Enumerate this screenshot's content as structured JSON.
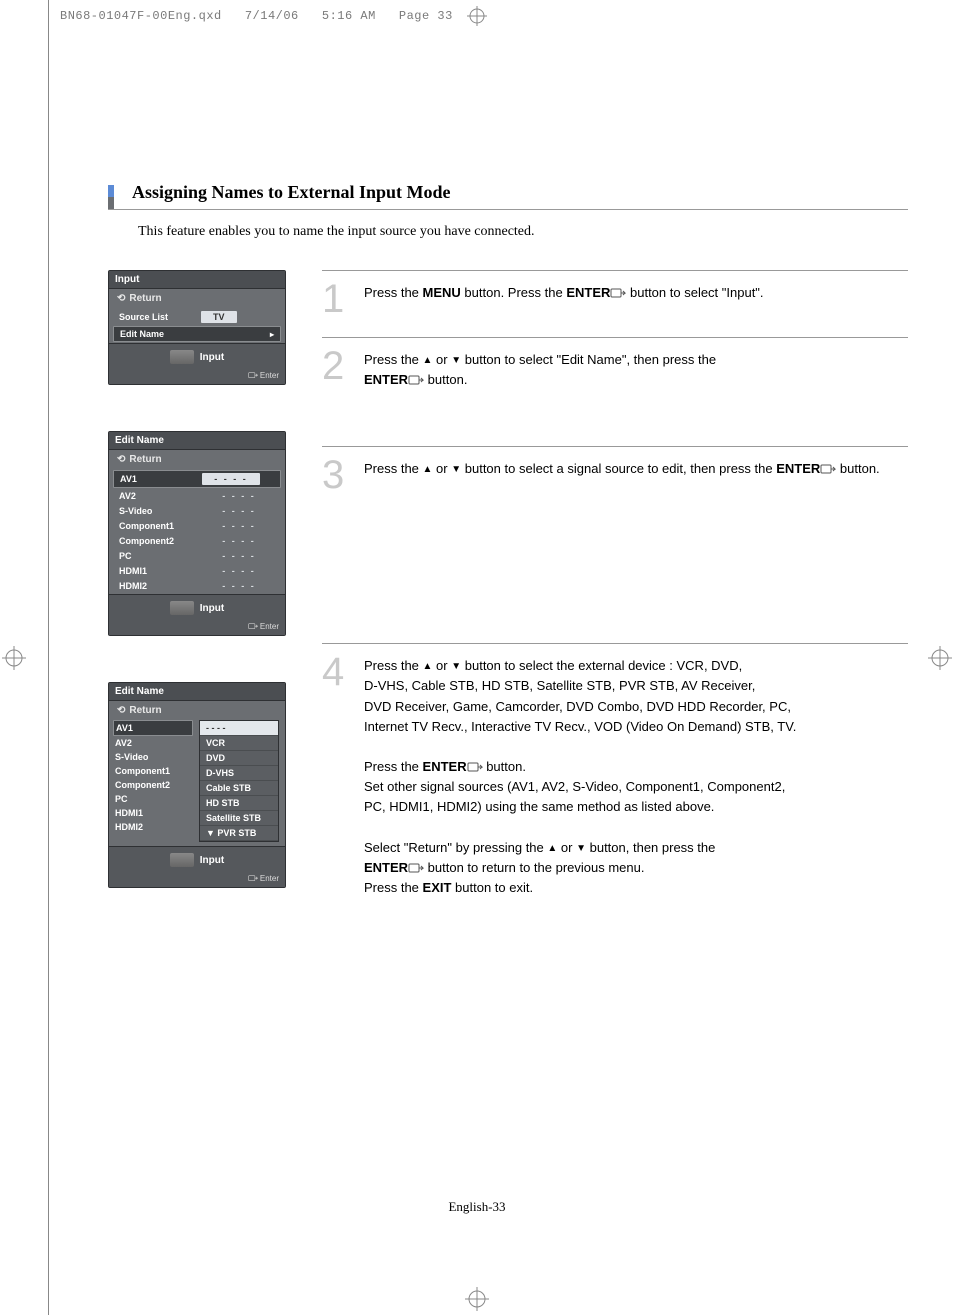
{
  "print_header": {
    "filename": "BN68-01047F-00Eng.qxd",
    "date": "7/14/06",
    "time": "5:16 AM",
    "page_label": "Page 33"
  },
  "section": {
    "title": "Assigning Names to External Input Mode",
    "description": "This feature enables you to name the input source you have connected.",
    "tab_colors": [
      "#5c8bd6",
      "#6b6e72"
    ]
  },
  "osd_common": {
    "return_label": "Return",
    "footer_label": "Input",
    "enter_label": "Enter"
  },
  "menu1": {
    "title": "Input",
    "rows": [
      {
        "label": "Source List",
        "value": "TV",
        "selected": false,
        "show_tri": false,
        "box": true
      },
      {
        "label": "Edit Name",
        "value": "",
        "selected": true,
        "show_tri": true
      }
    ]
  },
  "menu2": {
    "title": "Edit Name",
    "rows": [
      {
        "label": "AV1",
        "value": "- - - -",
        "selected": true
      },
      {
        "label": "AV2",
        "value": "- - - -"
      },
      {
        "label": "S-Video",
        "value": "- - - -"
      },
      {
        "label": "Component1",
        "value": "- - - -"
      },
      {
        "label": "Component2",
        "value": "- - - -"
      },
      {
        "label": "PC",
        "value": "- - - -"
      },
      {
        "label": "HDMI1",
        "value": "- - - -"
      },
      {
        "label": "HDMI2",
        "value": "- - - -"
      }
    ]
  },
  "menu3": {
    "title": "Edit Name",
    "left_items": [
      "AV1",
      "AV2",
      "S-Video",
      "Component1",
      "Component2",
      "PC",
      "HDMI1",
      "HDMI2"
    ],
    "selected_left": 0,
    "dropdown": {
      "blank": "- - - -",
      "items": [
        "VCR",
        "DVD",
        "D-VHS",
        "Cable STB",
        "HD STB",
        "Satellite STB",
        "PVR STB"
      ],
      "scroll_indicator": "▼"
    }
  },
  "steps": {
    "s1": {
      "num": "1",
      "p1a": "Press the ",
      "p1b": "MENU",
      "p1c": " button. Press the ",
      "p1d": "ENTER",
      "p1e": " button to select \"Input\"."
    },
    "s2": {
      "num": "2",
      "p1a": "Press the ",
      "p1b": " or ",
      "p1c": " button to select \"Edit Name\", then press the ",
      "p1d": "ENTER",
      "p1e": " button."
    },
    "s3": {
      "num": "3",
      "p1a": "Press the ",
      "p1b": " or ",
      "p1c": " button to select a signal source to edit, then press the ",
      "p1d": "ENTER",
      "p1e": " button."
    },
    "s4": {
      "num": "4",
      "l1a": "Press the ",
      "l1b": " or ",
      "l1c": " button to select the external device : VCR, DVD,",
      "l2": "D-VHS, Cable STB, HD STB, Satellite STB, PVR STB, AV Receiver,",
      "l3": "DVD Receiver, Game, Camcorder, DVD Combo, DVD HDD Recorder, PC,",
      "l4": "Internet TV Recv., Interactive TV Recv., VOD (Video On Demand) STB, TV.",
      "l5a": "Press the ",
      "l5b": "ENTER",
      "l5c": " button.",
      "l6": "Set other signal sources (AV1, AV2, S-Video, Component1, Component2,",
      "l7": "PC, HDMI1, HDMI2) using the same method as listed above.",
      "l8a": "Select \"Return\" by pressing the ",
      "l8b": " or ",
      "l8c": " button, then press the ",
      "l9a": "ENTER",
      "l9b": " button to return to the previous menu.",
      "l10a": "Press the ",
      "l10b": "EXIT",
      "l10c": " button to exit."
    }
  },
  "footer": "English-33",
  "glyphs": {
    "up": "▲",
    "down": "▼",
    "right": "▸",
    "return_icon": "⟲"
  }
}
